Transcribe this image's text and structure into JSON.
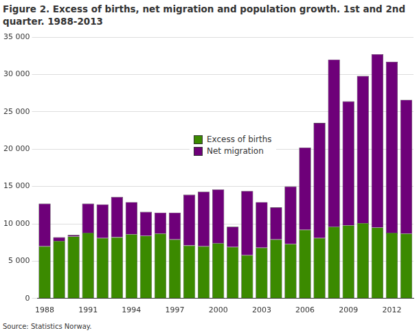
{
  "chart_data": {
    "type": "bar",
    "title": "Figure 2. Excess of births, net migration and population growth. 1st and 2nd quarter. 1988-2013",
    "source": "Source: Statistics Norway.",
    "categories": [
      "1988",
      null,
      null,
      "1991",
      null,
      null,
      "1994",
      null,
      null,
      "1997",
      null,
      null,
      "2000",
      null,
      null,
      "2003",
      null,
      null,
      "2006",
      null,
      null,
      "2009",
      null,
      null,
      "2012",
      null
    ],
    "series": [
      {
        "name": "Excess of births",
        "color": "#3b8a00",
        "values": [
          7000,
          7700,
          8300,
          8800,
          8100,
          8200,
          8600,
          8400,
          8700,
          7900,
          7100,
          7000,
          7400,
          6900,
          5800,
          6800,
          7900,
          7300,
          9200,
          8100,
          9600,
          9800,
          10100,
          9500,
          8800,
          8700
        ]
      },
      {
        "name": "Net migration",
        "color": "#6e0079",
        "values": [
          5700,
          500,
          200,
          3900,
          4500,
          5400,
          4300,
          3200,
          2800,
          3600,
          6800,
          7300,
          7200,
          2700,
          8600,
          6100,
          4300,
          7700,
          11000,
          15400,
          22400,
          16600,
          19700,
          23200,
          22900,
          17900
        ]
      }
    ],
    "stacked": true,
    "ylim": [
      0,
      35000
    ],
    "yticks": [
      0,
      {
        "value": 5000,
        "label": "5 000"
      },
      {
        "value": 10000,
        "label": "10 000"
      },
      {
        "value": 15000,
        "label": "15 000"
      },
      {
        "value": 20000,
        "label": "20 000"
      },
      {
        "value": 25000,
        "label": "25 000"
      },
      {
        "value": 30000,
        "label": "30 000"
      },
      {
        "value": 35000,
        "label": "35 000"
      }
    ],
    "grid": true,
    "legend": "center"
  }
}
